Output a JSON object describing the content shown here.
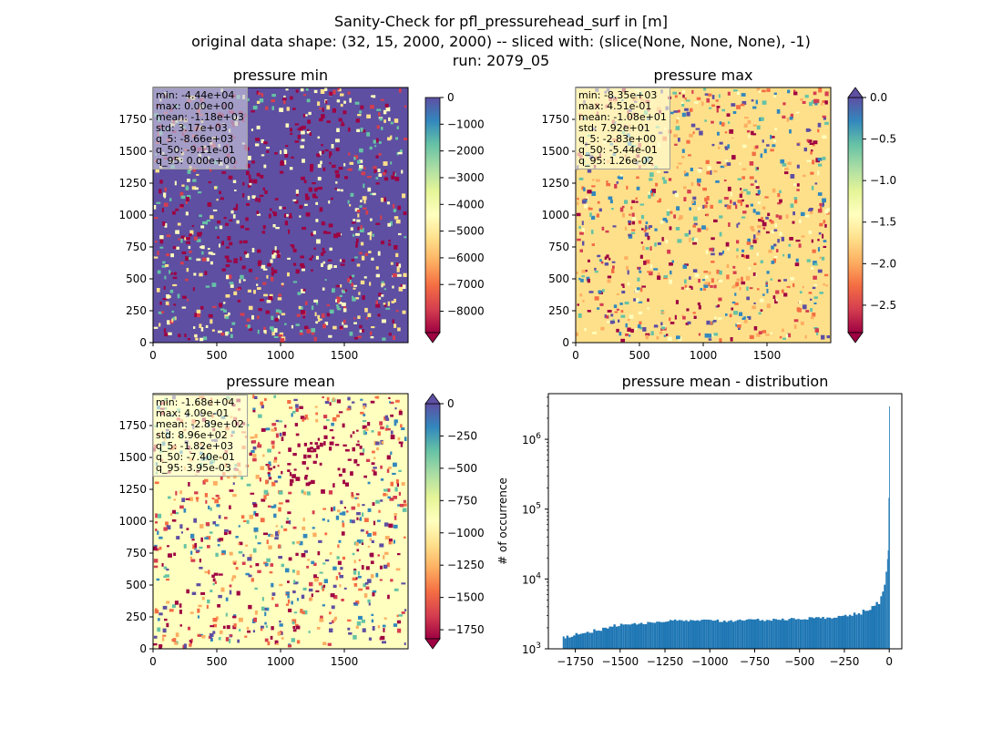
{
  "figure": {
    "suptitle_lines": [
      "Sanity-Check for pfl_pressurehead_surf in [m]",
      "original data shape: (32, 15, 2000, 2000) -- sliced with: (slice(None, None, None), -1)",
      "run: 2079_05"
    ],
    "colormap": [
      "#9e0142",
      "#d53e4f",
      "#f46d43",
      "#fdae61",
      "#fee08b",
      "#ffffbf",
      "#e6f598",
      "#abdda4",
      "#66c2a5",
      "#3288bd",
      "#5e4fa2"
    ]
  },
  "chart_data": [
    {
      "type": "heatmap",
      "title": "pressure min",
      "xlim": [
        0,
        2000
      ],
      "ylim": [
        0,
        2000
      ],
      "xticks": [
        0,
        500,
        1000,
        1500
      ],
      "yticks": [
        0,
        250,
        500,
        750,
        1000,
        1250,
        1500,
        1750
      ],
      "colorbar": {
        "range": [
          -8800,
          0
        ],
        "ticks": [
          0,
          -1000,
          -2000,
          -3000,
          -4000,
          -5000,
          -6000,
          -7000,
          -8000
        ],
        "extend": "min"
      },
      "stats": [
        "min: -4.44e+04",
        "max: 0.00e+00",
        "mean: -1.18e+03",
        "std: 3.17e+03",
        "q_5: -8.66e+03",
        "q_50: -9.11e-01",
        "q_95: 0.00e+00"
      ]
    },
    {
      "type": "heatmap",
      "title": "pressure max",
      "xlim": [
        0,
        2000
      ],
      "ylim": [
        0,
        2000
      ],
      "xticks": [
        0,
        500,
        1000,
        1500
      ],
      "yticks": [
        0,
        250,
        500,
        750,
        1000,
        1250,
        1500,
        1750
      ],
      "colorbar": {
        "range": [
          -2.83,
          0.0
        ],
        "ticks": [
          0.0,
          -0.5,
          -1.0,
          -1.5,
          -2.0,
          -2.5
        ],
        "tick_labels": [
          "0.0",
          "−0.5",
          "−1.0",
          "−1.5",
          "−2.0",
          "−2.5"
        ],
        "extend": "both"
      },
      "stats": [
        "min: -8.35e+03",
        "max: 4.51e-01",
        "mean: -1.08e+01",
        "std: 7.92e+01",
        "q_5: -2.83e+00",
        "q_50: -5.44e-01",
        "q_95: 1.26e-02"
      ]
    },
    {
      "type": "heatmap",
      "title": "pressure mean",
      "xlim": [
        0,
        2000
      ],
      "ylim": [
        0,
        2000
      ],
      "xticks": [
        0,
        500,
        1000,
        1500
      ],
      "yticks": [
        0,
        250,
        500,
        750,
        1000,
        1250,
        1500,
        1750
      ],
      "colorbar": {
        "range": [
          -1820,
          0
        ],
        "ticks": [
          0,
          -250,
          -500,
          -750,
          -1000,
          -1250,
          -1500,
          -1750
        ],
        "extend": "both"
      },
      "stats": [
        "min: -1.68e+04",
        "max: 4.09e-01",
        "mean: -2.89e+02",
        "std: 8.96e+02",
        "q_5: -1.82e+03",
        "q_50: -7.40e-01",
        "q_95: 3.95e-03"
      ]
    },
    {
      "type": "bar",
      "title": "pressure mean - distribution",
      "ylabel": "# of occurrence",
      "xlabel": "",
      "xlim": [
        -1900,
        70
      ],
      "xticks": [
        -1750,
        -1500,
        -1250,
        -1000,
        -750,
        -500,
        -250,
        0
      ],
      "yscale": "log",
      "ylim": [
        1000,
        4500000
      ],
      "yticks": [
        1000,
        10000,
        100000,
        1000000
      ],
      "ytick_labels": [
        [
          "10",
          "3"
        ],
        [
          "10",
          "4"
        ],
        [
          "10",
          "5"
        ],
        [
          "10",
          "6"
        ]
      ],
      "color": "#1f77b4",
      "bins": {
        "x": [
          -1820,
          -1800,
          -1750,
          -1700,
          -1650,
          -1600,
          -1550,
          -1500,
          -1450,
          -1400,
          -1350,
          -1300,
          -1250,
          -1200,
          -1150,
          -1100,
          -1050,
          -1000,
          -950,
          -900,
          -850,
          -800,
          -750,
          -700,
          -650,
          -600,
          -550,
          -500,
          -450,
          -400,
          -350,
          -300,
          -250,
          -200,
          -150,
          -100,
          -75,
          -50,
          -40,
          -30,
          -20,
          -12,
          -8,
          -4,
          0
        ],
        "y": [
          1450,
          1500,
          1620,
          1750,
          1880,
          2020,
          2150,
          2250,
          2300,
          2330,
          2380,
          2450,
          2500,
          2550,
          2520,
          2500,
          2550,
          2600,
          2480,
          2530,
          2620,
          2560,
          2620,
          2580,
          2650,
          2620,
          2680,
          2700,
          2750,
          2780,
          2820,
          2900,
          3000,
          3200,
          3500,
          4000,
          4500,
          5500,
          6500,
          8500,
          13000,
          20000,
          26000,
          150000,
          3000000
        ]
      }
    }
  ]
}
